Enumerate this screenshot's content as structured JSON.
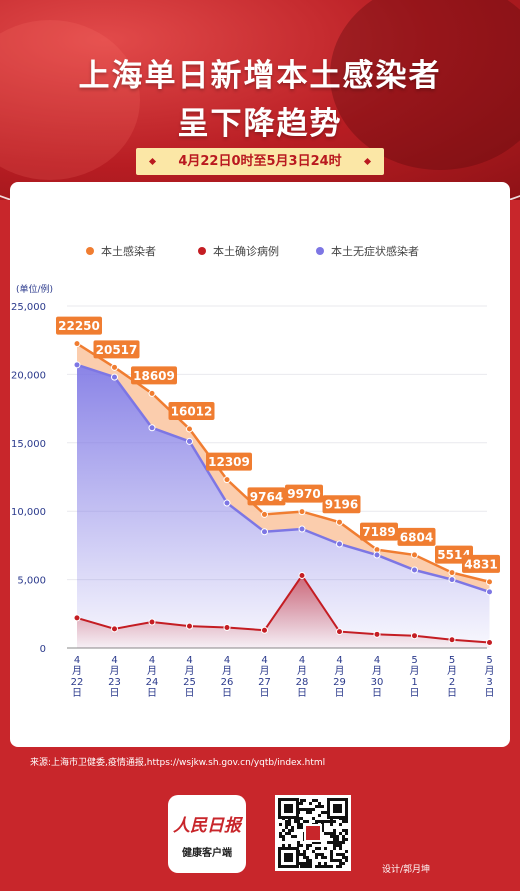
{
  "header": {
    "title_line1": "上海单日新增本土感染者",
    "title_line2": "呈下降趋势",
    "date_range": "4月22日0时至5月3日24时"
  },
  "chart_data": {
    "type": "area",
    "categories": [
      "4月22日",
      "4月23日",
      "4月24日",
      "4月25日",
      "4月26日",
      "4月27日",
      "4月28日",
      "4月29日",
      "4月30日",
      "5月1日",
      "5月2日",
      "5月3日"
    ],
    "x_labels": [
      [
        "4",
        "月",
        "22",
        "日"
      ],
      [
        "4",
        "月",
        "23",
        "日"
      ],
      [
        "4",
        "月",
        "24",
        "日"
      ],
      [
        "4",
        "月",
        "25",
        "日"
      ],
      [
        "4",
        "月",
        "26",
        "日"
      ],
      [
        "4",
        "月",
        "27",
        "日"
      ],
      [
        "4",
        "月",
        "28",
        "日"
      ],
      [
        "4",
        "月",
        "29",
        "日"
      ],
      [
        "4",
        "月",
        "30",
        "日"
      ],
      [
        "5",
        "月",
        "1",
        "日"
      ],
      [
        "5",
        "月",
        "2",
        "日"
      ],
      [
        "5",
        "月",
        "3",
        "日"
      ]
    ],
    "y_unit": "(单位/例)",
    "ylim": [
      0,
      25000
    ],
    "yticks": [
      0,
      5000,
      10000,
      15000,
      20000,
      25000
    ],
    "ytick_labels": [
      "0",
      "5,000",
      "10,000",
      "15,000",
      "20,000",
      "25,000"
    ],
    "legend_position": "top",
    "series": [
      {
        "name": "本土感染者",
        "color": "#f07d31",
        "values": [
          22250,
          20517,
          18609,
          16012,
          12309,
          9764,
          9970,
          9196,
          7189,
          6804,
          5514,
          4831
        ],
        "labeled": true
      },
      {
        "name": "本土确诊病例",
        "color": "#c41d23",
        "values": [
          2200,
          1400,
          1900,
          1600,
          1500,
          1300,
          5300,
          1200,
          1000,
          900,
          600,
          400
        ]
      },
      {
        "name": "本土无症状感染者",
        "color": "#7d76e4",
        "values": [
          20700,
          19800,
          16100,
          15100,
          10600,
          8500,
          8700,
          7600,
          6800,
          5700,
          5000,
          4100
        ]
      }
    ]
  },
  "footer": {
    "source": "来源:上海市卫健委,疫情通报,https://wsjkw.sh.gov.cn/yqtb/index.html",
    "logo_main": "人民日报",
    "logo_sub": "健康客户端",
    "designer": "设计/郭月坤"
  }
}
